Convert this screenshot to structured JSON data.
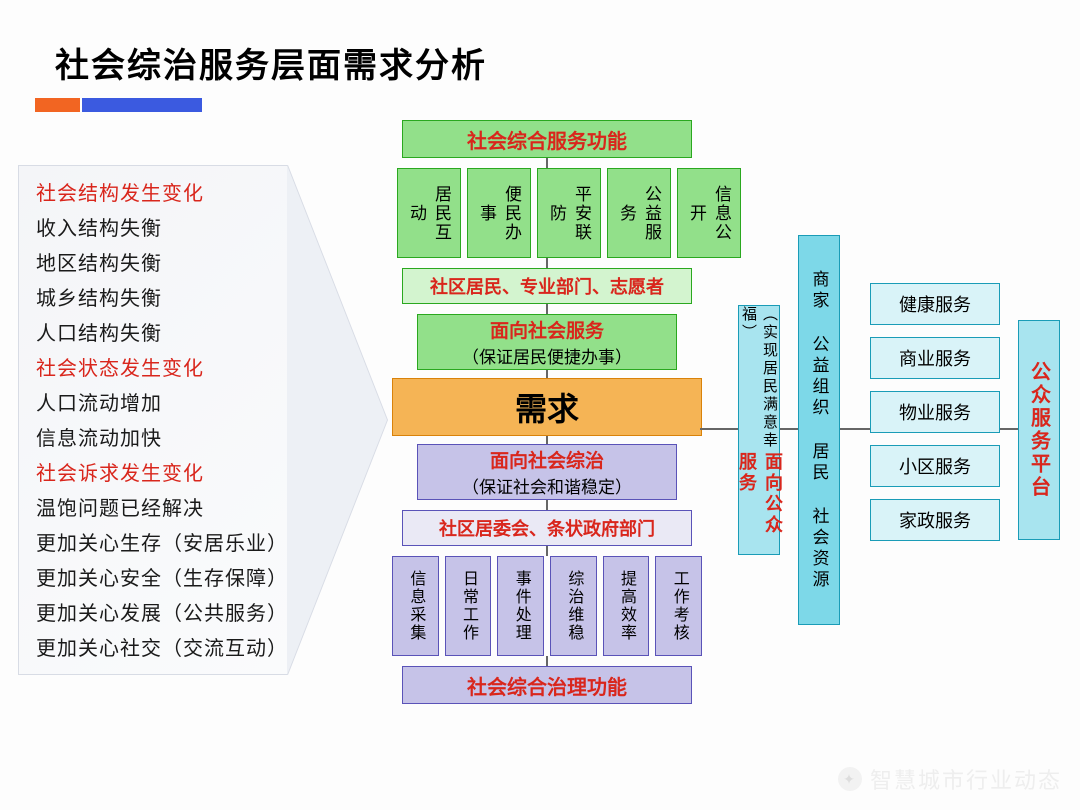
{
  "title": "社会综治服务层面需求分析",
  "accent": {
    "orange": "#f26522",
    "blue": "#3b5ae0"
  },
  "left_list": [
    {
      "t": "社会结构发生变化",
      "red": true
    },
    {
      "t": "收入结构失衡",
      "red": false
    },
    {
      "t": "地区结构失衡",
      "red": false
    },
    {
      "t": "城乡结构失衡",
      "red": false
    },
    {
      "t": "人口结构失衡",
      "red": false
    },
    {
      "t": "社会状态发生变化",
      "red": true
    },
    {
      "t": "人口流动增加",
      "red": false
    },
    {
      "t": "信息流动加快",
      "red": false
    },
    {
      "t": "社会诉求发生变化",
      "red": true
    },
    {
      "t": "温饱问题已经解决",
      "red": false
    },
    {
      "t": "更加关心生存（安居乐业）",
      "red": false
    },
    {
      "t": "更加关心安全（生存保障）",
      "red": false
    },
    {
      "t": "更加关心发展（公共服务）",
      "red": false
    },
    {
      "t": "更加关心社交（交流互动）",
      "red": false
    }
  ],
  "center": {
    "top_header": "社会综合服务功能",
    "top_items": [
      "居民互动",
      "便民办事",
      "平安联防",
      "公益服务",
      "信息公开"
    ],
    "actors_top": "社区居民、专业部门、志愿者",
    "face_service": {
      "title": "面向社会服务",
      "sub": "（保证居民便捷办事）"
    },
    "demand": "需求",
    "face_gov": {
      "title": "面向社会综治",
      "sub": "（保证社会和谐稳定）"
    },
    "actors_bot": "社区居委会、条状政府部门",
    "bot_items": [
      "信息采集",
      "日常工作",
      "事件处理",
      "综治维稳",
      "提高效率",
      "工作考核"
    ],
    "bot_header": "社会综合治理功能"
  },
  "right": {
    "bar1_title": "面向公众服务",
    "bar1_sub": "（实现居民满意幸福）",
    "bar2": "商家 公益组织 居民 社会资源",
    "services": [
      "健康服务",
      "商业服务",
      "物业服务",
      "小区服务",
      "家政服务"
    ],
    "platform": "公众服务平台"
  },
  "watermark": "智慧城市行业动态",
  "colors": {
    "green_fill": "#92e08a",
    "green_border": "#2aa81f",
    "lightgreen_fill": "#d3f4cf",
    "lav_fill": "#c6c3e8",
    "lav_border": "#5a53b8",
    "lightlav_fill": "#eae9f5",
    "orange_fill": "#f5b455",
    "orange_border": "#d9820a",
    "cyan_fill": "#a8e4ef",
    "cyan_border": "#1a9cb7",
    "txt_red": "#d9261c"
  }
}
